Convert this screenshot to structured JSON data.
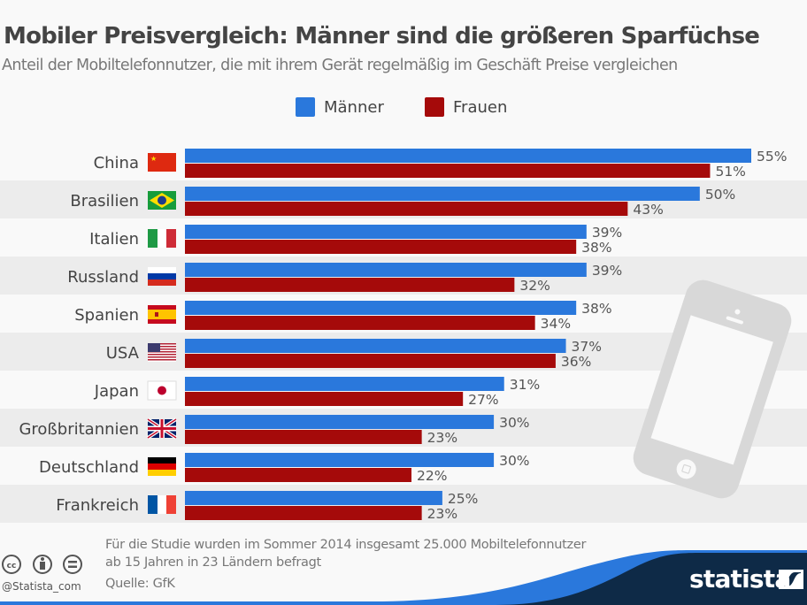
{
  "header": {
    "title": "Mobiler Preisvergleich: Männer sind die größeren Sparfüchse",
    "subtitle": "Anteil der Mobiltelefonnutzer, die mit ihrem Gerät regelmäßig im Geschäft Preise vergleichen"
  },
  "colors": {
    "men": "#2a78dc",
    "women": "#a50a0a",
    "row_alt": "#ececec",
    "footer_dark": "#0e2a47"
  },
  "chart_data": {
    "type": "bar",
    "orientation": "horizontal",
    "title": "Mobiler Preisvergleich: Männer sind die größeren Sparfüchse",
    "subtitle": "Anteil der Mobiltelefonnutzer, die mit ihrem Gerät regelmäßig im Geschäft Preise vergleichen",
    "xlabel": "",
    "ylabel": "",
    "unit": "%",
    "xlim": [
      0,
      55
    ],
    "grid": false,
    "legend_position": "top-center",
    "categories": [
      "China",
      "Brasilien",
      "Italien",
      "Russland",
      "Spanien",
      "USA",
      "Japan",
      "Großbritannien",
      "Deutschland",
      "Frankreich"
    ],
    "flags": [
      "china-flag",
      "brazil-flag",
      "italy-flag",
      "russia-flag",
      "spain-flag",
      "usa-flag",
      "japan-flag",
      "uk-flag",
      "germany-flag",
      "france-flag"
    ],
    "series": [
      {
        "name": "Männer",
        "values": [
          55,
          50,
          39,
          39,
          38,
          37,
          31,
          30,
          30,
          25
        ]
      },
      {
        "name": "Frauen",
        "values": [
          51,
          43,
          38,
          32,
          34,
          36,
          27,
          23,
          22,
          23
        ]
      }
    ]
  },
  "footer": {
    "note_line1": "Für die Studie wurden im Sommer 2014 insgesamt 25.000 Mobiltelefonnutzer",
    "note_line2": "ab 15 Jahren in 23 Ländern befragt",
    "source": "Quelle: GfK",
    "handle": "@Statista_com",
    "logo": "statista",
    "license_icons": [
      "cc-icon",
      "by-icon",
      "nd-icon"
    ]
  }
}
